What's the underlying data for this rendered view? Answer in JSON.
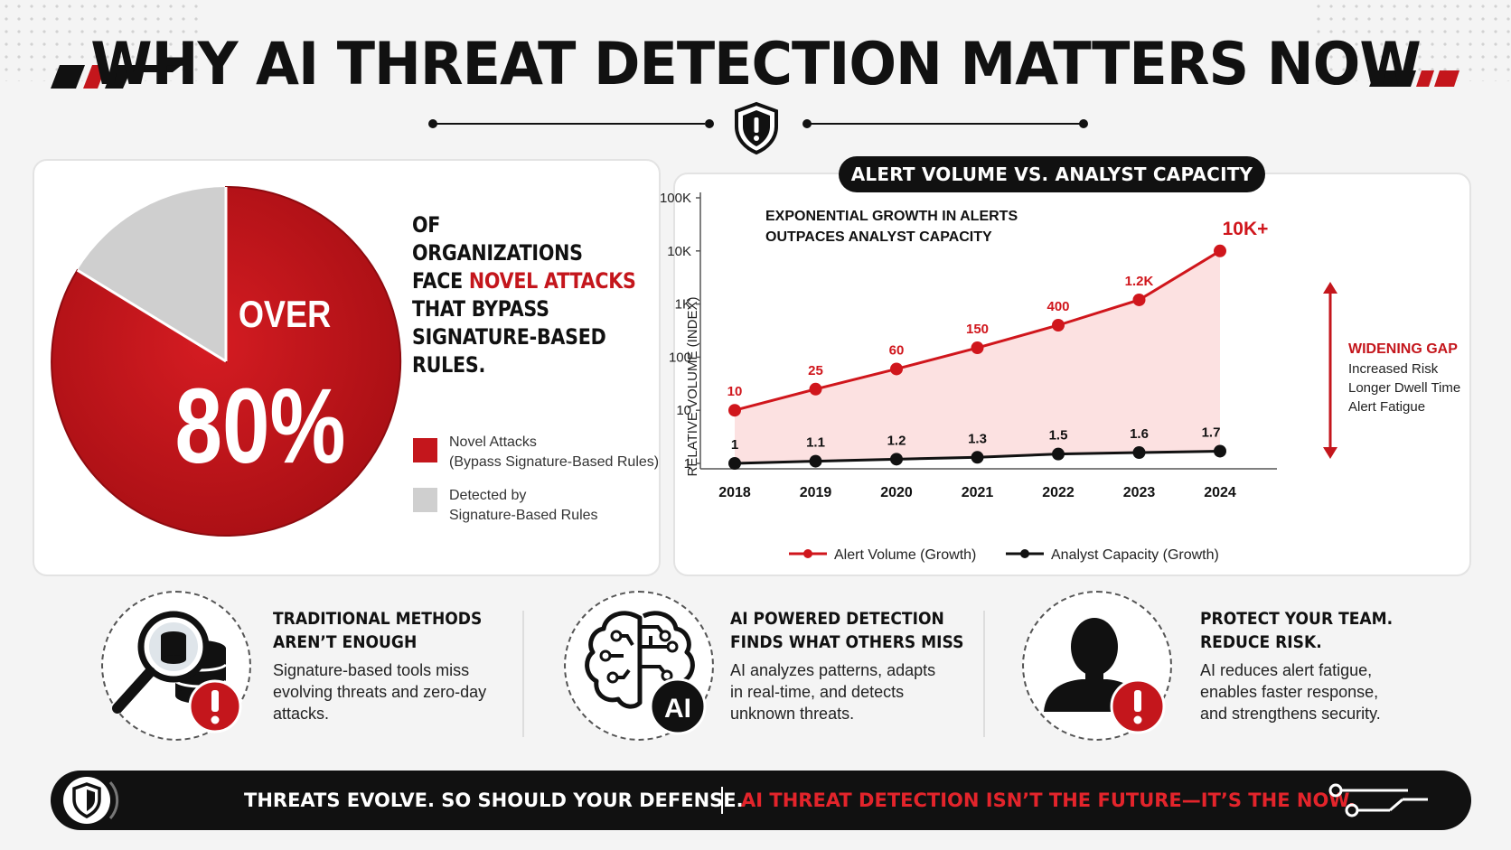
{
  "header": {
    "title": "WHY AI THREAT DETECTION MATTERS NOW",
    "icon": "shield-exclamation-icon"
  },
  "stat_panel": {
    "over_label": "OVER",
    "percent_label": "80%",
    "headline_lines": [
      "OF",
      "ORGANIZATIONS",
      "FACE ",
      "NOVEL ATTACKS",
      "THAT BYPASS",
      "SIGNATURE-BASED",
      "RULES."
    ],
    "legend": [
      {
        "label_line1": "Novel Attacks",
        "label_line2": "(Bypass Signature-Based Rules)",
        "color": "#c4161c"
      },
      {
        "label_line1": "Detected by",
        "label_line2": "Signature-Based Rules",
        "color": "#cfcfcf"
      }
    ]
  },
  "chart_data": {
    "type": "line",
    "title": "ALERT VOLUME VS. ANALYST CAPACITY",
    "subtitle_line1": "EXPONENTIAL GROWTH IN ALERTS",
    "subtitle_line2": "OUTPACES ANALYST CAPACITY",
    "ylabel": "RELATIVE VOLUME (INDEX)",
    "xlabel": "",
    "y_scale": "log",
    "ylim": [
      1,
      100000
    ],
    "y_ticks": [
      "1",
      "10",
      "100",
      "1K",
      "10K",
      "100K"
    ],
    "x": [
      "2018",
      "2019",
      "2020",
      "2021",
      "2022",
      "2023",
      "2024"
    ],
    "series": [
      {
        "name": "Alert Volume (Growth)",
        "color": "#d0161c",
        "values": [
          10,
          25,
          60,
          150,
          400,
          1200,
          10000
        ],
        "labels": [
          "10",
          "25",
          "60",
          "150",
          "400",
          "1.2K",
          "10K+"
        ]
      },
      {
        "name": "Analyst Capacity (Growth)",
        "color": "#111111",
        "values": [
          1,
          1.1,
          1.2,
          1.3,
          1.5,
          1.6,
          1.7
        ],
        "labels": [
          "1",
          "1.1",
          "1.2",
          "1.3",
          "1.5",
          "1.6",
          "1.7"
        ]
      }
    ],
    "gap_annotation": {
      "title": "WIDENING GAP",
      "lines": [
        "Increased Risk",
        "Longer Dwell Time",
        "Alert Fatigue"
      ]
    },
    "legend_position": "bottom",
    "grid": false
  },
  "features": [
    {
      "title_line1": "TRADITIONAL METHODS",
      "title_line2": "AREN’T ENOUGH",
      "body_lines": [
        "Signature-based tools miss",
        "evolving threats and zero-day",
        "attacks."
      ],
      "icon": "magnifier-database-icon"
    },
    {
      "title_line1": "AI POWERED DETECTION",
      "title_line2": "FINDS WHAT OTHERS MISS",
      "body_lines": [
        "AI analyzes patterns, adapts",
        "in real-time, and detects",
        "unknown threats."
      ],
      "icon": "ai-brain-icon",
      "badge": "AI"
    },
    {
      "title_line1": "PROTECT YOUR TEAM.",
      "title_line2": "REDUCE RISK.",
      "body_lines": [
        "AI reduces alert fatigue,",
        "enables faster response,",
        "and strengthens security."
      ],
      "icon": "person-alert-icon"
    }
  ],
  "footer": {
    "left_text": "THREATS EVOLVE. SO SHOULD YOUR DEFENSE.",
    "right_text": "AI THREAT DETECTION ISN’T THE FUTURE—IT’S THE NOW.",
    "icon": "shield-icon"
  },
  "colors": {
    "accent": "#c4161c",
    "dark": "#111111",
    "light_gray": "#cfcfcf"
  }
}
